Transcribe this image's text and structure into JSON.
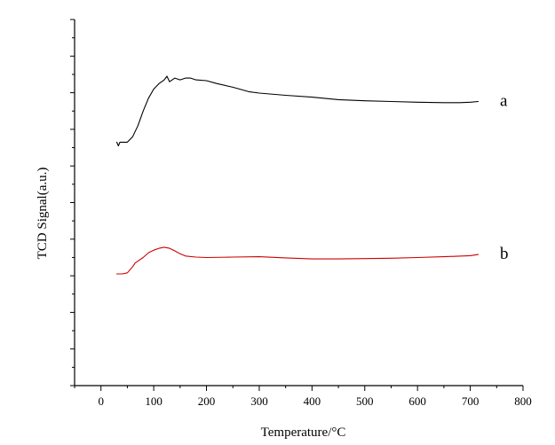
{
  "chart_data": {
    "type": "line",
    "title": "",
    "xlabel": "Temperature/°C",
    "ylabel": "TCD Signal(a.u.)",
    "xlim": [
      -50,
      800
    ],
    "ylim": [
      0,
      100
    ],
    "x_ticks": [
      "0",
      "100",
      "200",
      "300",
      "400",
      "500",
      "600",
      "700",
      "800"
    ],
    "x_tick_values": [
      0,
      100,
      200,
      300,
      400,
      500,
      600,
      700,
      800
    ],
    "y_minor_tick_count": 20,
    "grid": false,
    "legend": "none (inline labels at right end of curves)",
    "series": [
      {
        "name": "a",
        "color": "#000000",
        "x": [
          30,
          33,
          36,
          50,
          60,
          70,
          80,
          90,
          100,
          110,
          120,
          125,
          130,
          140,
          150,
          160,
          170,
          180,
          200,
          220,
          250,
          280,
          300,
          350,
          400,
          450,
          500,
          550,
          600,
          650,
          680,
          700,
          715
        ],
        "y": [
          66.5,
          65.5,
          66.5,
          66.5,
          68.0,
          71.0,
          75.0,
          78.5,
          81.0,
          82.5,
          83.5,
          84.5,
          83.0,
          84.0,
          83.5,
          84.0,
          84.0,
          83.5,
          83.3,
          82.5,
          81.5,
          80.3,
          79.9,
          79.3,
          78.8,
          78.1,
          77.8,
          77.6,
          77.4,
          77.3,
          77.3,
          77.4,
          77.6
        ]
      },
      {
        "name": "b",
        "color": "#cc0000",
        "x": [
          30,
          40,
          50,
          60,
          65,
          70,
          80,
          90,
          100,
          110,
          120,
          130,
          140,
          150,
          160,
          180,
          200,
          250,
          300,
          350,
          400,
          450,
          500,
          550,
          600,
          650,
          700,
          715
        ],
        "y": [
          30.5,
          30.5,
          30.8,
          32.5,
          33.5,
          34.0,
          35.0,
          36.3,
          37.0,
          37.5,
          37.8,
          37.5,
          36.8,
          36.0,
          35.4,
          35.1,
          35.0,
          35.1,
          35.2,
          34.9,
          34.6,
          34.6,
          34.7,
          34.8,
          35.0,
          35.2,
          35.5,
          35.8
        ]
      }
    ],
    "series_labels": [
      "a",
      "b"
    ]
  }
}
